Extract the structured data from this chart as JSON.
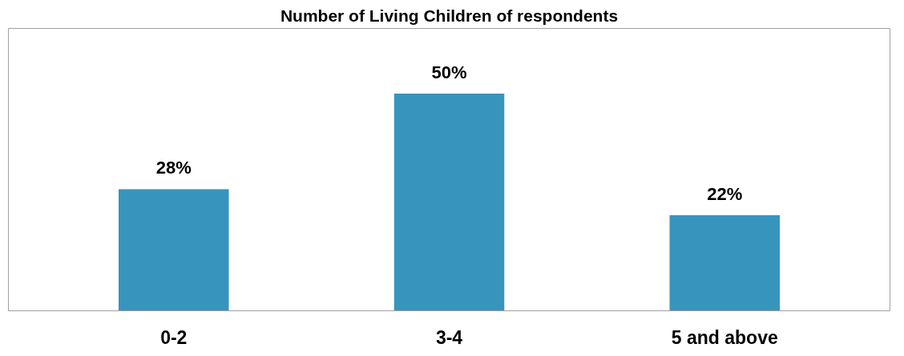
{
  "chart_data": {
    "type": "bar",
    "title": "Number of Living Children of respondents",
    "categories": [
      "0-2",
      "3-4",
      "5 and above"
    ],
    "values": [
      28,
      50,
      22
    ],
    "value_labels": [
      "28%",
      "50%",
      "22%"
    ],
    "color": "#3795bd",
    "grid": false
  }
}
